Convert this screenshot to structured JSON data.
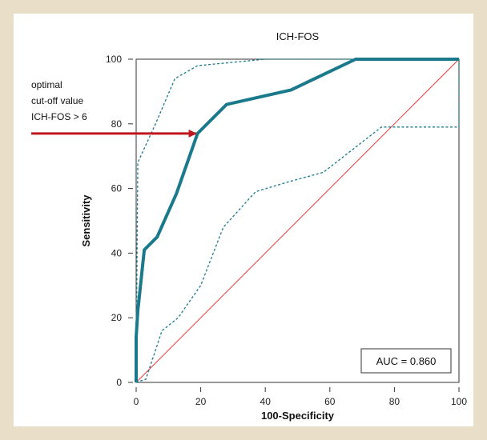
{
  "chart_data": {
    "type": "line",
    "title": "ICH-FOS",
    "xlabel": "100-Specificity",
    "ylabel": "Sensitivity",
    "xlim": [
      0,
      100
    ],
    "ylim": [
      0,
      100
    ],
    "x_ticks": [
      "0",
      "20",
      "40",
      "60",
      "80",
      "100"
    ],
    "y_ticks": [
      "0",
      "20",
      "40",
      "60",
      "80",
      "100"
    ],
    "grid": false,
    "colors": {
      "roc": "#1a7a8c",
      "ci": "#1a7a8c",
      "diagonal": "#e23a3a",
      "arrow": "#c0161d"
    },
    "series": [
      {
        "values": [
          [
            0,
            0
          ],
          [
            0,
            14
          ],
          [
            0.5,
            22
          ],
          [
            2.5,
            41
          ],
          [
            6.5,
            45
          ],
          [
            12.5,
            58.5
          ],
          [
            19,
            77
          ],
          [
            28,
            86
          ],
          [
            48,
            90.5
          ],
          [
            68,
            100
          ],
          [
            100,
            100
          ]
        ]
      },
      {
        "values": [
          [
            0,
            3
          ],
          [
            0.5,
            68
          ],
          [
            6,
            80
          ],
          [
            12,
            94
          ],
          [
            19,
            98
          ],
          [
            40,
            100
          ],
          [
            100,
            100
          ]
        ]
      },
      {
        "values": [
          [
            0,
            0
          ],
          [
            3,
            1
          ],
          [
            8,
            16
          ],
          [
            13,
            20
          ],
          [
            20,
            30
          ],
          [
            27,
            48
          ],
          [
            37,
            59
          ],
          [
            47,
            62
          ],
          [
            58,
            65
          ],
          [
            76,
            79
          ],
          [
            100,
            79
          ],
          [
            100,
            100
          ]
        ]
      },
      {
        "values": [
          [
            0,
            0
          ],
          [
            100,
            100
          ]
        ]
      }
    ],
    "annotation": {
      "lines": [
        "optimal",
        "cut-off value",
        "ICH-FOS > 6"
      ],
      "arrow_to": [
        19,
        77
      ]
    },
    "legend_box": "AUC = 0.860"
  }
}
